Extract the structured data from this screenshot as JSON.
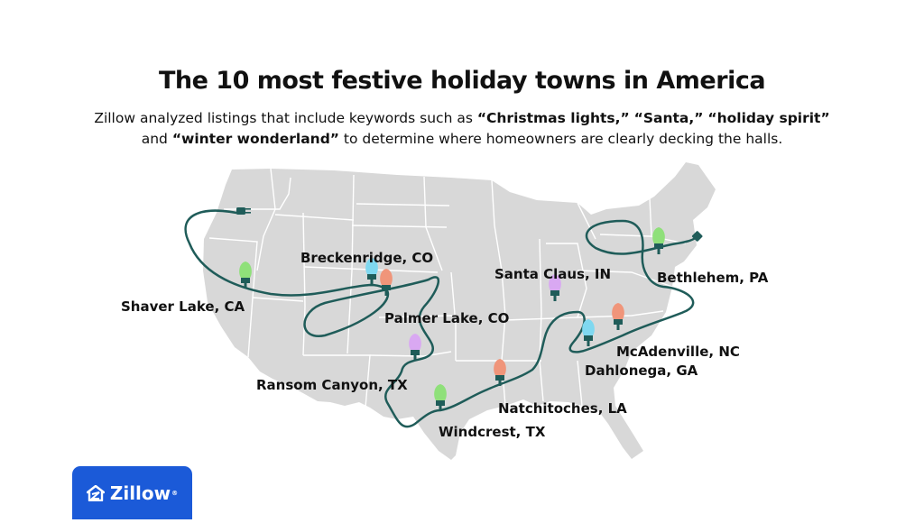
{
  "title": "The 10 most festive holiday towns in America",
  "subtitle": {
    "part1": "Zillow analyzed listings that include keywords such as ",
    "k1": "“Christmas lights,”",
    "s1": " ",
    "k2": "“Santa,”",
    "s2": " ",
    "k3": "“holiday spirit”",
    "part2": " and ",
    "k4": "“winter wonderland”",
    "part3": " to determine where homeowners are clearly decking the halls."
  },
  "towns": [
    {
      "name": "Shaver Lake, CA",
      "bulb_color": "#8fe07a"
    },
    {
      "name": "Breckenridge, CO",
      "bulb_color": "#7fd8f0"
    },
    {
      "name": "Palmer Lake, CO",
      "bulb_color": "#f0957a"
    },
    {
      "name": "Ransom Canyon, TX",
      "bulb_color": "#d9a8f2"
    },
    {
      "name": "Windcrest, TX",
      "bulb_color": "#8fe07a"
    },
    {
      "name": "Natchitoches, LA",
      "bulb_color": "#f0957a"
    },
    {
      "name": "Santa Claus, IN",
      "bulb_color": "#d9a8f2"
    },
    {
      "name": "Dahlonega, GA",
      "bulb_color": "#7fd8f0"
    },
    {
      "name": "McAdenville, NC",
      "bulb_color": "#f0957a"
    },
    {
      "name": "Bethlehem, PA",
      "bulb_color": "#8fe07a"
    }
  ],
  "colors": {
    "map_fill": "#d8d8d8",
    "border": "#ffffff",
    "cord": "#1f5c59",
    "brand": "#1b5ad8"
  },
  "logo": {
    "text": "Zillow",
    "mark": "®"
  }
}
